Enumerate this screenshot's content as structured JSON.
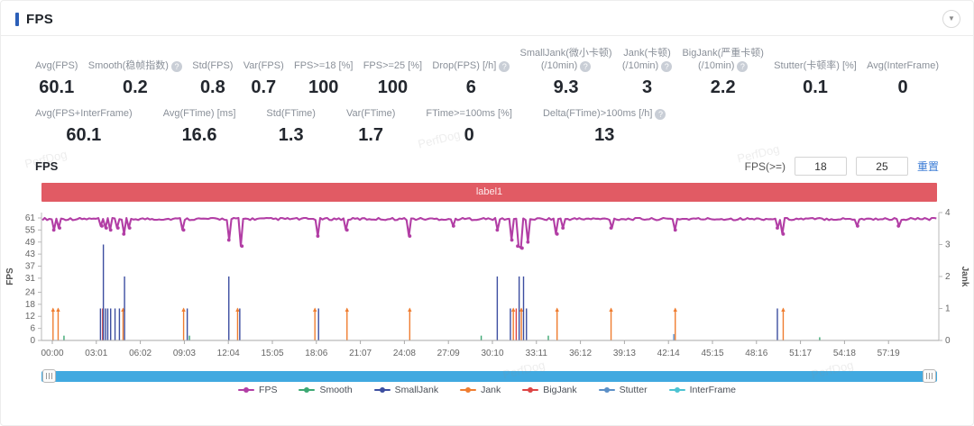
{
  "panel": {
    "title": "FPS",
    "watermark": "PerfDog"
  },
  "stats_row1": [
    {
      "label": "Avg(FPS)",
      "value": "60.1"
    },
    {
      "label": "Smooth(稳帧指数)",
      "value": "0.2",
      "help": true
    },
    {
      "label": "Std(FPS)",
      "value": "0.8"
    },
    {
      "label": "Var(FPS)",
      "value": "0.7"
    },
    {
      "label": "FPS>=18 [%]",
      "value": "100"
    },
    {
      "label": "FPS>=25 [%]",
      "value": "100"
    },
    {
      "label": "Drop(FPS) [/h]",
      "value": "6",
      "help": true
    },
    {
      "label": "SmallJank(微小卡顿)",
      "label2": "(/10min)",
      "value": "9.3",
      "help": true
    },
    {
      "label": "Jank(卡顿)",
      "label2": "(/10min)",
      "value": "3",
      "help": true
    },
    {
      "label": "BigJank(严重卡顿)",
      "label2": "(/10min)",
      "value": "2.2",
      "help": true
    },
    {
      "label": "Stutter(卡顿率) [%]",
      "value": "0.1"
    },
    {
      "label": "Avg(InterFrame)",
      "value": "0"
    }
  ],
  "stats_row2": [
    {
      "label": "Avg(FPS+InterFrame)",
      "value": "60.1"
    },
    {
      "label": "Avg(FTime) [ms]",
      "value": "16.6"
    },
    {
      "label": "Std(FTime)",
      "value": "1.3"
    },
    {
      "label": "Var(FTime)",
      "value": "1.7"
    },
    {
      "label": "FTime>=100ms [%]",
      "value": "0"
    },
    {
      "label": "Delta(FTime)>100ms [/h]",
      "value": "13",
      "help": true
    }
  ],
  "chart_section": {
    "title": "FPS",
    "filter_label": "FPS(>=)",
    "fps_min": "18",
    "fps_max": "25",
    "reset_label": "重置",
    "banner": "label1"
  },
  "legend": [
    {
      "name": "FPS",
      "color": "#b23ea5"
    },
    {
      "name": "Smooth",
      "color": "#3ca873"
    },
    {
      "name": "SmallJank",
      "color": "#3c4ea0"
    },
    {
      "name": "Jank",
      "color": "#ef7d30"
    },
    {
      "name": "BigJank",
      "color": "#dd4444"
    },
    {
      "name": "Stutter",
      "color": "#5b8fc7"
    },
    {
      "name": "InterFrame",
      "color": "#4cc3d2"
    }
  ],
  "chart_data": {
    "type": "line",
    "x_ticks": [
      "00:00",
      "03:01",
      "06:02",
      "09:03",
      "12:04",
      "15:05",
      "18:06",
      "21:07",
      "24:08",
      "27:09",
      "30:10",
      "33:11",
      "36:12",
      "39:13",
      "42:14",
      "45:15",
      "48:16",
      "51:17",
      "54:18",
      "57:19"
    ],
    "minutes_per_tick": 3.0167,
    "y_left": {
      "label": "FPS",
      "ticks": [
        61,
        55,
        49,
        43,
        37,
        31,
        24,
        18,
        12,
        6,
        0
      ],
      "max": 61,
      "min": 0
    },
    "y_right": {
      "label": "Jank",
      "ticks": [
        4,
        3,
        2,
        1,
        0
      ],
      "max": 4,
      "min": 0
    },
    "grid": false,
    "fps_baseline": 60.3,
    "fps_dips": [
      [
        0.1,
        55
      ],
      [
        0.5,
        56
      ],
      [
        3.4,
        57
      ],
      [
        3.7,
        56
      ],
      [
        4.0,
        55
      ],
      [
        4.5,
        56
      ],
      [
        4.9,
        53
      ],
      [
        5.3,
        56
      ],
      [
        9.0,
        55
      ],
      [
        12.1,
        50
      ],
      [
        13.0,
        47
      ],
      [
        18.2,
        52
      ],
      [
        20.2,
        55
      ],
      [
        24.5,
        52
      ],
      [
        27.5,
        57
      ],
      [
        30.5,
        55
      ],
      [
        31.5,
        50
      ],
      [
        31.9,
        47
      ],
      [
        32.2,
        46
      ],
      [
        32.6,
        49
      ],
      [
        34.6,
        53
      ],
      [
        35.0,
        56
      ],
      [
        38.3,
        56
      ],
      [
        42.7,
        55
      ],
      [
        49.7,
        56
      ],
      [
        50.1,
        53
      ],
      [
        55.2,
        57
      ],
      [
        58.0,
        57
      ]
    ],
    "events": [
      {
        "t": 0.05,
        "s": "Jank",
        "v": 1
      },
      {
        "t": 0.4,
        "s": "Jank",
        "v": 1
      },
      {
        "t": 0.8,
        "s": "Smooth",
        "v": 0.15
      },
      {
        "t": 3.3,
        "s": "SmallJank",
        "v": 1
      },
      {
        "t": 3.45,
        "s": "BigJank",
        "v": 1
      },
      {
        "t": 3.5,
        "s": "SmallJank",
        "v": 3
      },
      {
        "t": 3.65,
        "s": "SmallJank",
        "v": 1
      },
      {
        "t": 3.8,
        "s": "SmallJank",
        "v": 1
      },
      {
        "t": 4.0,
        "s": "SmallJank",
        "v": 1
      },
      {
        "t": 4.3,
        "s": "SmallJank",
        "v": 1
      },
      {
        "t": 4.6,
        "s": "SmallJank",
        "v": 1
      },
      {
        "t": 4.85,
        "s": "Jank",
        "v": 1
      },
      {
        "t": 4.95,
        "s": "SmallJank",
        "v": 2
      },
      {
        "t": 9.0,
        "s": "Jank",
        "v": 1
      },
      {
        "t": 9.25,
        "s": "SmallJank",
        "v": 1
      },
      {
        "t": 9.4,
        "s": "Smooth",
        "v": 0.15
      },
      {
        "t": 12.1,
        "s": "SmallJank",
        "v": 2
      },
      {
        "t": 12.7,
        "s": "Jank",
        "v": 1
      },
      {
        "t": 12.85,
        "s": "SmallJank",
        "v": 1
      },
      {
        "t": 18.0,
        "s": "Jank",
        "v": 1
      },
      {
        "t": 18.25,
        "s": "SmallJank",
        "v": 1
      },
      {
        "t": 20.2,
        "s": "Jank",
        "v": 1
      },
      {
        "t": 24.5,
        "s": "Jank",
        "v": 1
      },
      {
        "t": 29.4,
        "s": "Smooth",
        "v": 0.15
      },
      {
        "t": 30.5,
        "s": "SmallJank",
        "v": 2
      },
      {
        "t": 31.4,
        "s": "SmallJank",
        "v": 1
      },
      {
        "t": 31.6,
        "s": "Jank",
        "v": 1
      },
      {
        "t": 31.8,
        "s": "BigJank",
        "v": 1
      },
      {
        "t": 32.0,
        "s": "SmallJank",
        "v": 2
      },
      {
        "t": 32.15,
        "s": "Jank",
        "v": 1
      },
      {
        "t": 32.3,
        "s": "SmallJank",
        "v": 2
      },
      {
        "t": 32.5,
        "s": "SmallJank",
        "v": 1
      },
      {
        "t": 34.0,
        "s": "Smooth",
        "v": 0.15
      },
      {
        "t": 34.6,
        "s": "Jank",
        "v": 1
      },
      {
        "t": 38.3,
        "s": "Jank",
        "v": 1
      },
      {
        "t": 42.6,
        "s": "Stutter",
        "v": 0.2
      },
      {
        "t": 42.7,
        "s": "Jank",
        "v": 1
      },
      {
        "t": 49.7,
        "s": "SmallJank",
        "v": 1
      },
      {
        "t": 50.1,
        "s": "Jank",
        "v": 1
      },
      {
        "t": 52.6,
        "s": "Smooth",
        "v": 0.1
      }
    ]
  }
}
